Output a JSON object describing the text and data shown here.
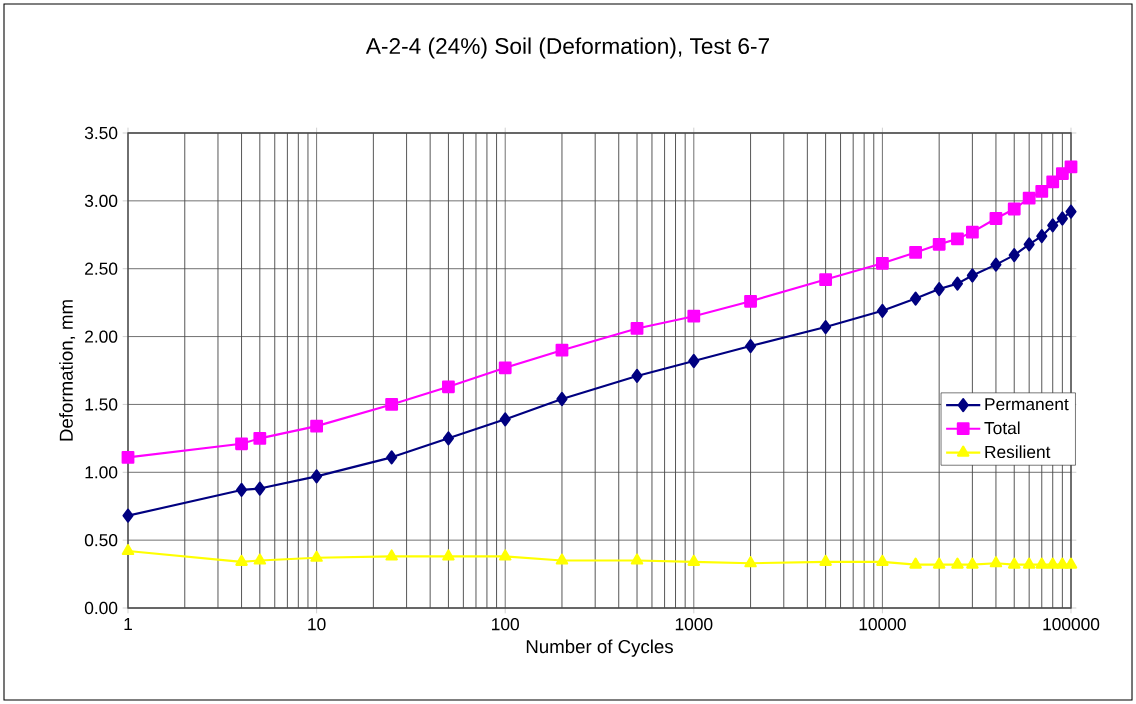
{
  "chart_data": {
    "type": "line",
    "title": "A-2-4 (24%) Soil (Deformation), Test 6-7",
    "xlabel": "Number of Cycles",
    "ylabel": "Deformation, mm",
    "log": "x",
    "grid": true,
    "legend": "right",
    "x": [
      1,
      4,
      5,
      10,
      25,
      50,
      100,
      200,
      500,
      1000,
      2000,
      5000,
      10000,
      15000,
      20000,
      25000,
      30000,
      40000,
      50000,
      60000,
      70000,
      80000,
      90000,
      100000
    ],
    "xlim": [
      1,
      100000
    ],
    "xticks": [
      1,
      10,
      100,
      1000,
      10000,
      100000
    ],
    "ylim": [
      0,
      3.5
    ],
    "yticks": [
      {
        "value": 0,
        "label": "0.00"
      },
      {
        "value": 0.5,
        "label": "0.50"
      },
      {
        "value": 1,
        "label": "1.00"
      },
      {
        "value": 1.5,
        "label": "1.50"
      },
      {
        "value": 2,
        "label": "2.00"
      },
      {
        "value": 2.5,
        "label": "2.50"
      },
      {
        "value": 3,
        "label": "3.00"
      },
      {
        "value": 3.5,
        "label": "3.50"
      }
    ],
    "series": [
      {
        "name": "Permanent",
        "color": "#000080",
        "marker": "diamond",
        "values": [
          0.68,
          0.87,
          0.88,
          0.97,
          1.11,
          1.25,
          1.39,
          1.54,
          1.71,
          1.82,
          1.93,
          2.07,
          2.19,
          2.28,
          2.35,
          2.39,
          2.45,
          2.53,
          2.6,
          2.68,
          2.74,
          2.82,
          2.87,
          2.92
        ]
      },
      {
        "name": "Total",
        "color": "#ff00ff",
        "marker": "square",
        "values": [
          1.11,
          1.21,
          1.25,
          1.34,
          1.5,
          1.63,
          1.77,
          1.9,
          2.06,
          2.15,
          2.26,
          2.42,
          2.54,
          2.62,
          2.68,
          2.72,
          2.77,
          2.87,
          2.94,
          3.02,
          3.07,
          3.14,
          3.2,
          3.25
        ]
      },
      {
        "name": "Resilient",
        "color": "#ffff00",
        "marker": "triangle",
        "values": [
          0.42,
          0.34,
          0.35,
          0.37,
          0.38,
          0.38,
          0.38,
          0.35,
          0.35,
          0.34,
          0.33,
          0.34,
          0.34,
          0.32,
          0.32,
          0.32,
          0.32,
          0.33,
          0.32,
          0.32,
          0.32,
          0.32,
          0.32,
          0.32
        ]
      }
    ]
  }
}
